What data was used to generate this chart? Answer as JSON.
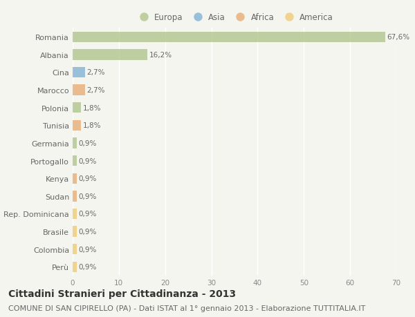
{
  "countries": [
    "Romania",
    "Albania",
    "Cina",
    "Marocco",
    "Polonia",
    "Tunisia",
    "Germania",
    "Portogallo",
    "Kenya",
    "Sudan",
    "Rep. Dominicana",
    "Brasile",
    "Colombia",
    "Perù"
  ],
  "values": [
    67.6,
    16.2,
    2.7,
    2.7,
    1.8,
    1.8,
    0.9,
    0.9,
    0.9,
    0.9,
    0.9,
    0.9,
    0.9,
    0.9
  ],
  "labels": [
    "67,6%",
    "16,2%",
    "2,7%",
    "2,7%",
    "1,8%",
    "1,8%",
    "0,9%",
    "0,9%",
    "0,9%",
    "0,9%",
    "0,9%",
    "0,9%",
    "0,9%",
    "0,9%"
  ],
  "colors": [
    "#aec285",
    "#aec285",
    "#7bafd4",
    "#e8a870",
    "#aec285",
    "#e8a870",
    "#aec285",
    "#aec285",
    "#e8a870",
    "#e8a870",
    "#f0c870",
    "#f0c870",
    "#f0c870",
    "#f0c870"
  ],
  "legend_labels": [
    "Europa",
    "Asia",
    "Africa",
    "America"
  ],
  "legend_colors": [
    "#aec285",
    "#7bafd4",
    "#e8a870",
    "#f0c870"
  ],
  "xlim": [
    0,
    70
  ],
  "xticks": [
    0,
    10,
    20,
    30,
    40,
    50,
    60,
    70
  ],
  "title": "Cittadini Stranieri per Cittadinanza - 2013",
  "subtitle": "COMUNE DI SAN CIPIRELLO (PA) - Dati ISTAT al 1° gennaio 2013 - Elaborazione TUTTITALIA.IT",
  "background_color": "#f5f5f0",
  "bar_alpha": 0.75,
  "title_fontsize": 10,
  "subtitle_fontsize": 8,
  "label_fontsize": 7.5,
  "ytick_fontsize": 8,
  "xtick_fontsize": 7.5,
  "legend_fontsize": 8.5
}
